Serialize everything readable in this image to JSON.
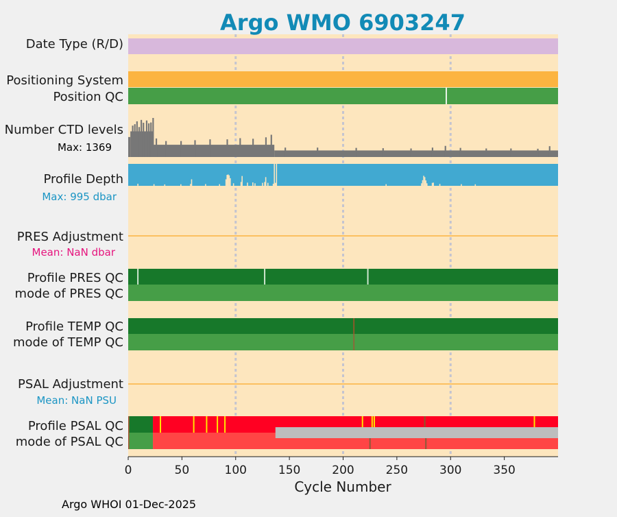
{
  "chart_data": {
    "type": "table",
    "title": "Argo WMO 6903247",
    "xlabel": "Cycle Number",
    "xlim": [
      0,
      400
    ],
    "xticks": [
      0,
      50,
      100,
      150,
      200,
      250,
      300,
      350
    ],
    "grid_x": [
      100,
      200,
      300
    ],
    "footer": "Argo WHOI 01-Dec-2025",
    "rows": {
      "date_type": {
        "label": "Date Type (R/D)",
        "segments": [
          {
            "from": 0,
            "to": 400,
            "color": "#d8b8dc"
          }
        ]
      },
      "positioning_system": {
        "label": "Positioning System",
        "segments": [
          {
            "from": 0,
            "to": 400,
            "color": "#fcb441"
          }
        ]
      },
      "position_qc": {
        "label": "Position QC",
        "segments": [
          {
            "from": 0,
            "to": 400,
            "color": "#469e47"
          }
        ],
        "markers": [
          {
            "x": 296,
            "color": "#e9f3e9"
          }
        ]
      },
      "ctd_levels": {
        "label": "Number CTD levels",
        "note": "Max: 1369",
        "max": 1369,
        "color": "#777777",
        "levels": [
          {
            "from": 0,
            "to": 2,
            "value": 700
          },
          {
            "from": 2,
            "to": 23,
            "value": 900
          },
          {
            "from": 23,
            "to": 136,
            "value": 430
          },
          {
            "from": 136,
            "to": 400,
            "value": 230
          }
        ],
        "spikes": [
          {
            "x": 4,
            "value": 1100
          },
          {
            "x": 6,
            "value": 1150
          },
          {
            "x": 8,
            "value": 1250
          },
          {
            "x": 10,
            "value": 1050
          },
          {
            "x": 12,
            "value": 1300
          },
          {
            "x": 14,
            "value": 1200
          },
          {
            "x": 17,
            "value": 1280
          },
          {
            "x": 19,
            "value": 1180
          },
          {
            "x": 21,
            "value": 1210
          },
          {
            "x": 23,
            "value": 1369
          },
          {
            "x": 26,
            "value": 650
          },
          {
            "x": 35,
            "value": 560
          },
          {
            "x": 49,
            "value": 560
          },
          {
            "x": 62,
            "value": 590
          },
          {
            "x": 76,
            "value": 620
          },
          {
            "x": 92,
            "value": 620
          },
          {
            "x": 104,
            "value": 660
          },
          {
            "x": 116,
            "value": 640
          },
          {
            "x": 128,
            "value": 690
          },
          {
            "x": 133,
            "value": 780
          },
          {
            "x": 146,
            "value": 330
          },
          {
            "x": 176,
            "value": 330
          },
          {
            "x": 212,
            "value": 320
          },
          {
            "x": 237,
            "value": 310
          },
          {
            "x": 263,
            "value": 300
          },
          {
            "x": 283,
            "value": 330
          },
          {
            "x": 295,
            "value": 390
          },
          {
            "x": 309,
            "value": 320
          },
          {
            "x": 333,
            "value": 300
          },
          {
            "x": 356,
            "value": 300
          },
          {
            "x": 381,
            "value": 290
          },
          {
            "x": 392,
            "value": 380
          }
        ]
      },
      "profile_depth": {
        "label": "Profile Depth",
        "note": "Max:  995 dbar",
        "max": 995,
        "color": "#41a9d1",
        "gaps": [
          {
            "x": 9,
            "depth": 900
          },
          {
            "x": 24,
            "depth": 920
          },
          {
            "x": 34,
            "depth": 930
          },
          {
            "x": 49,
            "depth": 925
          },
          {
            "x": 58,
            "depth": 910
          },
          {
            "x": 59,
            "depth": 700
          },
          {
            "x": 72,
            "depth": 915
          },
          {
            "x": 85,
            "depth": 920
          },
          {
            "x": 91,
            "depth": 700
          },
          {
            "x": 92,
            "depth": 500
          },
          {
            "x": 93,
            "depth": 480
          },
          {
            "x": 94,
            "depth": 520
          },
          {
            "x": 95,
            "depth": 650
          },
          {
            "x": 98,
            "depth": 880
          },
          {
            "x": 105,
            "depth": 820
          },
          {
            "x": 106,
            "depth": 550
          },
          {
            "x": 111,
            "depth": 850
          },
          {
            "x": 116,
            "depth": 840
          },
          {
            "x": 118,
            "depth": 880
          },
          {
            "x": 125,
            "depth": 860
          },
          {
            "x": 127,
            "depth": 820
          },
          {
            "x": 128,
            "depth": 600
          },
          {
            "x": 130,
            "depth": 860
          },
          {
            "x": 135,
            "depth": 900
          },
          {
            "x": 136,
            "depth": 0
          },
          {
            "x": 137,
            "depth": 860
          },
          {
            "x": 138,
            "depth": 0
          },
          {
            "x": 240,
            "depth": 920
          },
          {
            "x": 273,
            "depth": 880
          },
          {
            "x": 274,
            "depth": 740
          },
          {
            "x": 275,
            "depth": 540
          },
          {
            "x": 276,
            "depth": 600
          },
          {
            "x": 277,
            "depth": 750
          },
          {
            "x": 278,
            "depth": 880
          },
          {
            "x": 283,
            "depth": 860
          },
          {
            "x": 284,
            "depth": 850
          },
          {
            "x": 290,
            "depth": 910
          },
          {
            "x": 310,
            "depth": 920
          },
          {
            "x": 323,
            "depth": 925
          }
        ]
      },
      "pres_adjustment": {
        "label": "PRES Adjustment",
        "note": "Mean:  NaN dbar",
        "line_color": "#fcb441"
      },
      "profile_pres_qc": {
        "label": "Profile PRES QC",
        "segments": [
          {
            "from": 0,
            "to": 400,
            "color": "#17782a"
          }
        ],
        "markers": [
          {
            "x": 9,
            "color": "#cfe6cf"
          },
          {
            "x": 127,
            "color": "#cfe6cf"
          },
          {
            "x": 223,
            "color": "#cfe6cf"
          }
        ]
      },
      "mode_pres_qc": {
        "label": "mode of PRES QC",
        "segments": [
          {
            "from": 0,
            "to": 400,
            "color": "#469e47"
          }
        ]
      },
      "profile_temp_qc": {
        "label": "Profile TEMP QC",
        "segments": [
          {
            "from": 0,
            "to": 400,
            "color": "#17782a"
          }
        ],
        "markers": [
          {
            "x": 210,
            "color": "#8a5a2a"
          }
        ]
      },
      "mode_temp_qc": {
        "label": "mode of TEMP QC",
        "segments": [
          {
            "from": 0,
            "to": 400,
            "color": "#469e47"
          }
        ],
        "markers": [
          {
            "x": 210,
            "color": "#8a6a3a"
          }
        ]
      },
      "psal_adjustment": {
        "label": "PSAL Adjustment",
        "note": "Mean:  NaN PSU",
        "line_color": "#fcb441"
      },
      "profile_psal_qc": {
        "label": "Profile PSAL QC",
        "segments": [
          {
            "from": 0,
            "to": 1,
            "color": "#a0522d"
          },
          {
            "from": 1,
            "to": 23,
            "color": "#17782a"
          },
          {
            "from": 23,
            "to": 400,
            "color": "#ff0022"
          }
        ],
        "markers": [
          {
            "x": 30,
            "color": "#ffe600"
          },
          {
            "x": 61,
            "color": "#ffe600"
          },
          {
            "x": 73,
            "color": "#ffe600"
          },
          {
            "x": 83,
            "color": "#ffe600"
          },
          {
            "x": 90,
            "color": "#ffe600"
          },
          {
            "x": 218,
            "color": "#ffe600"
          },
          {
            "x": 227,
            "color": "#ffe600"
          },
          {
            "x": 229,
            "color": "#ffe600"
          },
          {
            "x": 276,
            "color": "#8a5a2a"
          },
          {
            "x": 378,
            "color": "#ffe600"
          }
        ]
      },
      "psal_grey": {
        "label": "",
        "segments": [
          {
            "from": 137,
            "to": 400,
            "color": "#bdbdbd"
          }
        ]
      },
      "mode_psal_qc": {
        "label": "mode of PSAL QC",
        "segments": [
          {
            "from": 0,
            "to": 1,
            "color": "#a0522d"
          },
          {
            "from": 1,
            "to": 23,
            "color": "#469e47"
          },
          {
            "from": 23,
            "to": 400,
            "color": "#ff4545"
          }
        ],
        "markers": [
          {
            "x": 225,
            "color": "#8a5a3a"
          },
          {
            "x": 277,
            "color": "#8a5a3a"
          }
        ]
      }
    }
  },
  "colors": {
    "plot_background": "#fde6be",
    "figure_background": "#f0f0f0",
    "title": "#128ab6",
    "note_depth": "#1b95c4",
    "note_pres": "#e6147e",
    "note_psal": "#1b95c4",
    "note_ctd": "#000000",
    "grid": "#c4c4d0",
    "text": "#1a1a1a"
  }
}
